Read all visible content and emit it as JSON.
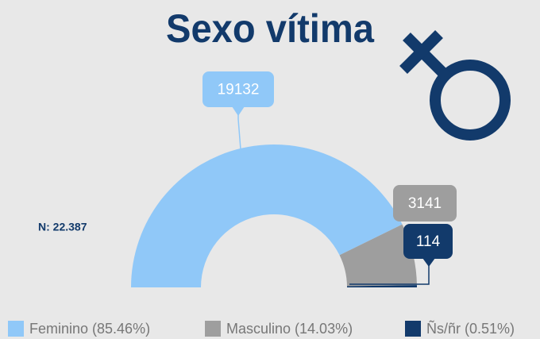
{
  "chart_data": {
    "type": "pie",
    "title": "Sexo vítima",
    "annotation": "N: 22.387",
    "categories": [
      "Feminino (85.46%)",
      "Masculino (14.03%)",
      "Ñs/ñr (0.51%)"
    ],
    "values": [
      19132,
      3141,
      114
    ],
    "colors": [
      "#90c8f8",
      "#9e9e9e",
      "#123a6b"
    ],
    "legend": "bottom"
  }
}
